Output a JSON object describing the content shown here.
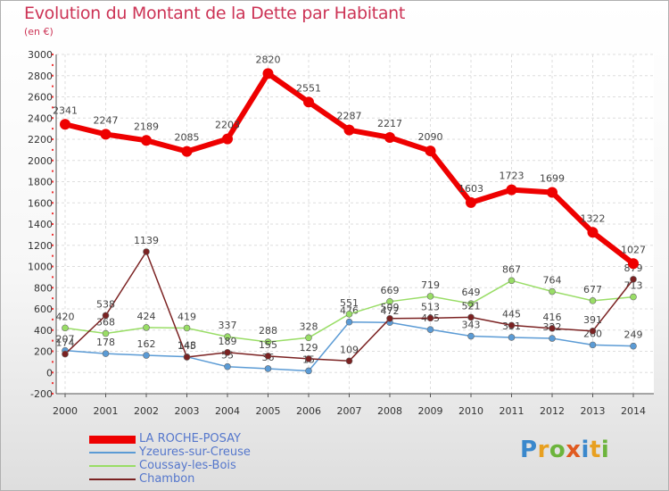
{
  "title": "Evolution du Montant de la Dette par Habitant",
  "subtitle": "(en €)",
  "logo": {
    "text": "Proxiti",
    "letters": [
      {
        "ch": "P",
        "color": "#3a88cc"
      },
      {
        "ch": "r",
        "color": "#e8a020"
      },
      {
        "ch": "o",
        "color": "#6cb43c"
      },
      {
        "ch": "x",
        "color": "#e05a20"
      },
      {
        "ch": "i",
        "color": "#3a88cc"
      },
      {
        "ch": "t",
        "color": "#e8a020"
      },
      {
        "ch": "i",
        "color": "#6cb43c"
      }
    ]
  },
  "chart_data": {
    "type": "line",
    "title": "Evolution du Montant de la Dette par Habitant",
    "ylabel": "(en €)",
    "xlabel": "",
    "ylim": [
      -200,
      3000
    ],
    "ytick_step": 200,
    "grid": true,
    "legend_position": "bottom-left",
    "categories": [
      "2000",
      "2001",
      "2002",
      "2003",
      "2004",
      "2005",
      "2006",
      "2007",
      "2008",
      "2009",
      "2010",
      "2011",
      "2012",
      "2013",
      "2014"
    ],
    "series": [
      {
        "name": "LA ROCHE-POSAY",
        "color": "#ee0000",
        "values": [
          2341,
          2247,
          2189,
          2085,
          2203,
          2820,
          2551,
          2287,
          2217,
          2090,
          1603,
          1723,
          1699,
          1322,
          1027
        ]
      },
      {
        "name": "Yzeures-sur-Creuse",
        "color": "#5b9bd5",
        "values": [
          207,
          178,
          162,
          148,
          55,
          36,
          15,
          476,
          472,
          405,
          343,
          331,
          322,
          260,
          249
        ]
      },
      {
        "name": "Coussay-les-Bois",
        "color": "#99dd66",
        "values": [
          420,
          368,
          424,
          419,
          337,
          288,
          328,
          551,
          669,
          719,
          649,
          867,
          764,
          677,
          713
        ]
      },
      {
        "name": "Chambon",
        "color": "#7b2222",
        "values": [
          174,
          538,
          1139,
          145,
          189,
          155,
          129,
          109,
          509,
          513,
          521,
          445,
          416,
          391,
          879
        ]
      }
    ]
  }
}
